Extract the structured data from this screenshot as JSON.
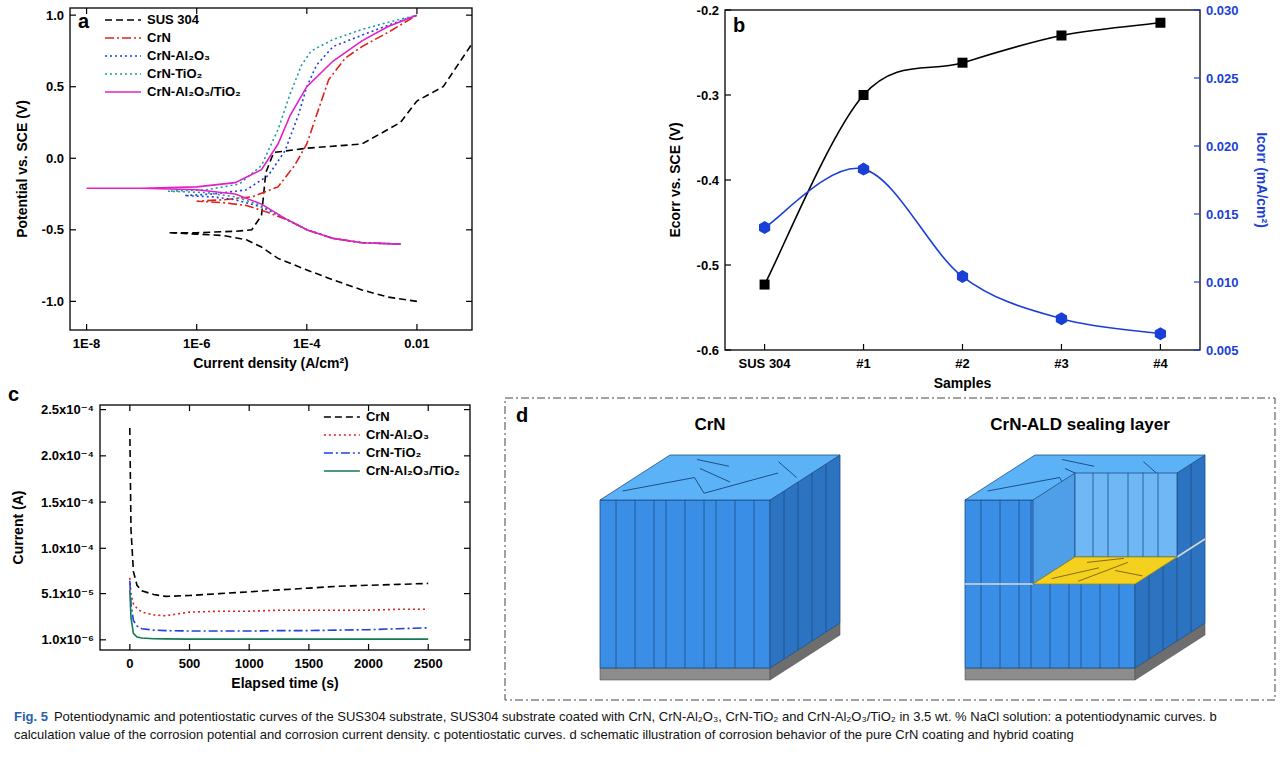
{
  "chart_data": [
    {
      "type": "line",
      "title": "a",
      "xlabel": "Current density (A/cm²)",
      "ylabel": "Potential vs. SCE (V)",
      "log": "x",
      "xlim": [
        5e-09,
        0.1
      ],
      "xticks": [
        {
          "value": 1e-08,
          "label": "1E-8"
        },
        {
          "value": 1e-06,
          "label": "1E-6"
        },
        {
          "value": 0.0001,
          "label": "1E-4"
        },
        0.01
      ],
      "ylim": [
        -1.2,
        1.05
      ],
      "yticks": [
        {
          "value": -1,
          "label": "-1.0"
        },
        -0.5,
        {
          "value": 0,
          "label": "0.0"
        },
        0.5,
        {
          "value": 1,
          "label": "1.0"
        }
      ],
      "legend": "upper left",
      "series": [
        {
          "name": "SUS 304",
          "color": "#000000",
          "line_style": "dashed",
          "x": [
            0.01,
            0.003,
            0.001,
            0.0003,
            0.0001,
            3e-05,
            1.5e-05,
            8e-06,
            3e-06,
            1e-06,
            3e-07,
            1e-06,
            5e-06,
            1e-05,
            1.5e-05,
            1.8e-05,
            2.5e-05,
            0.0001,
            0.001,
            0.005,
            0.01,
            0.03,
            0.1
          ],
          "values": [
            -1.0,
            -0.97,
            -0.92,
            -0.85,
            -0.78,
            -0.7,
            -0.62,
            -0.57,
            -0.54,
            -0.53,
            -0.52,
            -0.52,
            -0.51,
            -0.5,
            -0.4,
            -0.1,
            0.04,
            0.07,
            0.1,
            0.25,
            0.4,
            0.5,
            0.8
          ]
        },
        {
          "name": "CrN",
          "color": "#e0201b",
          "line_style": "dashdot",
          "x": [
            0.005,
            0.001,
            0.0003,
            0.0001,
            5e-05,
            2e-05,
            8e-06,
            3e-06,
            1e-06,
            3e-06,
            1e-05,
            3e-05,
            6e-05,
            0.0001,
            0.00015,
            0.00025,
            0.0005,
            0.001,
            0.003,
            0.01
          ],
          "values": [
            -0.6,
            -0.59,
            -0.56,
            -0.5,
            -0.44,
            -0.38,
            -0.33,
            -0.31,
            -0.3,
            -0.29,
            -0.27,
            -0.2,
            -0.05,
            0.1,
            0.3,
            0.55,
            0.7,
            0.78,
            0.88,
            1.0
          ]
        },
        {
          "name": "CrN-Al₂O₃",
          "color": "#1f3fe0",
          "line_style": "dotted",
          "x": [
            0.005,
            0.001,
            0.0003,
            0.0001,
            4e-05,
            1.5e-05,
            5e-06,
            2e-06,
            6e-07,
            2e-06,
            8e-06,
            2e-05,
            4e-05,
            7e-05,
            0.0001,
            0.00015,
            0.0003,
            0.001,
            0.003,
            0.01
          ],
          "values": [
            -0.6,
            -0.59,
            -0.56,
            -0.5,
            -0.42,
            -0.34,
            -0.29,
            -0.27,
            -0.26,
            -0.25,
            -0.22,
            -0.12,
            0.05,
            0.3,
            0.5,
            0.65,
            0.78,
            0.86,
            0.93,
            1.0
          ]
        },
        {
          "name": "CrN-TiO₂",
          "color": "#1c9a9a",
          "line_style": "dotted",
          "x": [
            0.005,
            0.001,
            0.0003,
            0.0001,
            4e-05,
            1.5e-05,
            5e-06,
            1.5e-06,
            3e-07,
            1.5e-06,
            6e-06,
            1.5e-05,
            3e-05,
            5e-05,
            8e-05,
            0.00012,
            0.0003,
            0.001,
            0.003,
            0.01
          ],
          "values": [
            -0.6,
            -0.59,
            -0.56,
            -0.5,
            -0.42,
            -0.33,
            -0.27,
            -0.24,
            -0.23,
            -0.22,
            -0.18,
            -0.05,
            0.2,
            0.45,
            0.65,
            0.75,
            0.83,
            0.9,
            0.95,
            1.0
          ]
        },
        {
          "name": "CrN-Al₂O₃/TiO₂",
          "color": "#e020c8",
          "line_style": "solid",
          "x": [
            0.005,
            0.001,
            0.0003,
            0.0001,
            4e-05,
            1.5e-05,
            5e-06,
            1e-06,
            1e-07,
            1e-08,
            1e-07,
            1e-06,
            5e-06,
            1.5e-05,
            3e-05,
            5e-05,
            0.0001,
            0.0003,
            0.001,
            0.003,
            0.01
          ],
          "values": [
            -0.6,
            -0.59,
            -0.56,
            -0.5,
            -0.42,
            -0.32,
            -0.25,
            -0.22,
            -0.21,
            -0.21,
            -0.21,
            -0.2,
            -0.17,
            -0.08,
            0.1,
            0.3,
            0.5,
            0.68,
            0.82,
            0.92,
            1.0
          ]
        }
      ]
    },
    {
      "type": "line",
      "title": "b",
      "xlabel": "Samples",
      "ylabel": "Ecorr vs. SCE (V)",
      "y2label": "Icorr (mA/cm²)",
      "categories": [
        "SUS 304",
        "#1",
        "#2",
        "#3",
        "#4"
      ],
      "ylim": [
        -0.6,
        -0.2
      ],
      "yticks": [
        -0.6,
        -0.5,
        -0.4,
        -0.3,
        -0.2
      ],
      "y2lim": [
        0.005,
        0.03
      ],
      "y2ticks": [
        0.005,
        {
          "value": 0.01,
          "label": "0.010"
        },
        0.015,
        {
          "value": 0.02,
          "label": "0.020"
        },
        0.025,
        {
          "value": 0.03,
          "label": "0.030"
        }
      ],
      "series": [
        {
          "color": "#000000",
          "marker": "square",
          "values": [
            -0.523,
            -0.3,
            -0.262,
            -0.23,
            -0.215
          ]
        },
        {
          "color": "#1a3fd6",
          "marker": "hexagon",
          "axis": "y2",
          "values": [
            0.014,
            0.0183,
            0.0104,
            0.0073,
            0.0062
          ]
        }
      ]
    },
    {
      "type": "line",
      "title": "c",
      "xlabel": "Elapsed time (s)",
      "ylabel": "Current (A)",
      "xlim": [
        -250,
        2850
      ],
      "xticks": [
        0,
        500,
        1000,
        1500,
        2000,
        2500
      ],
      "ylim": [
        -1e-05,
        0.000255
      ],
      "yticks": [
        {
          "value": 1e-06,
          "label": "1.0x10⁻⁶"
        },
        {
          "value": 5.1e-05,
          "label": "5.1x10⁻⁵"
        },
        {
          "value": 0.0001,
          "label": "1.0x10⁻⁴"
        },
        {
          "value": 0.00015,
          "label": "1.5x10⁻⁴"
        },
        {
          "value": 0.0002,
          "label": "2.0x10⁻⁴"
        },
        {
          "value": 0.00025,
          "label": "2.5x10⁻⁴"
        }
      ],
      "legend": "upper right",
      "x": [
        0,
        10,
        30,
        60,
        100,
        200,
        300,
        500,
        750,
        1000,
        1250,
        1500,
        1750,
        2000,
        2250,
        2500
      ],
      "series": [
        {
          "name": "CrN",
          "color": "#000000",
          "line_style": "dashed",
          "values": [
            0.00023,
            0.00012,
            7.5e-05,
            6e-05,
            5.4e-05,
            5e-05,
            4.8e-05,
            4.9e-05,
            5.1e-05,
            5.3e-05,
            5.5e-05,
            5.7e-05,
            5.9e-05,
            6e-05,
            6.1e-05,
            6.2e-05
          ]
        },
        {
          "name": "CrN-Al₂O₃",
          "color": "#e0201b",
          "line_style": "dotted",
          "values": [
            6.8e-05,
            5e-05,
            4e-05,
            3.5e-05,
            3.1e-05,
            2.8e-05,
            2.7e-05,
            3.1e-05,
            3.2e-05,
            3.2e-05,
            3.3e-05,
            3.3e-05,
            3.3e-05,
            3.3e-05,
            3.4e-05,
            3.4e-05
          ]
        },
        {
          "name": "CrN-TiO₂",
          "color": "#1f3fe0",
          "line_style": "dashdot",
          "values": [
            6.5e-05,
            4e-05,
            2.2e-05,
            1.6e-05,
            1.3e-05,
            1.15e-05,
            1.1e-05,
            1.05e-05,
            1.05e-05,
            1.05e-05,
            1.1e-05,
            1.1e-05,
            1.15e-05,
            1.2e-05,
            1.3e-05,
            1.4e-05
          ]
        },
        {
          "name": "CrN-Al₂O₃/TiO₂",
          "color": "#127a55",
          "line_style": "solid",
          "values": [
            5.5e-05,
            2.5e-05,
            8e-06,
            4e-06,
            3e-06,
            2.2e-06,
            2e-06,
            1.8e-06,
            1.8e-06,
            1.8e-06,
            1.8e-06,
            1.8e-06,
            1.8e-06,
            1.8e-06,
            1.8e-06,
            1.8e-06
          ]
        }
      ]
    }
  ],
  "diagram": {
    "title": "d",
    "labels": [
      "CrN",
      "CrN-ALD sealing layer"
    ]
  },
  "caption": {
    "label": "Fig. 5",
    "text": "Potentiodynamic and potentiostatic curves of the SUS304 substrate, SUS304 substrate coated with CrN, CrN-Al₂O₃, CrN-TiO₂ and CrN-Al₂O₃/TiO₂ in 3.5 wt. % NaCl solution: a potentiodynamic curves. b calculation value of the corrosion potential and corrosion current density. c potentiostatic curves. d schematic illustration of corrosion behavior of the pure CrN coating and hybrid coating"
  }
}
